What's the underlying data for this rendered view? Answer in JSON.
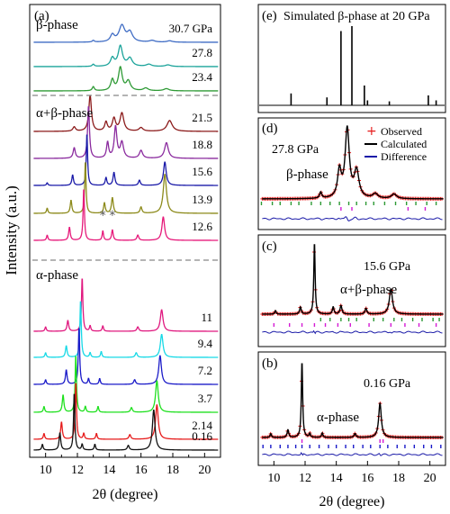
{
  "chart_data": [
    {
      "id": "a",
      "type": "line",
      "panel_label": "(a)",
      "xlabel": "2θ (degree)",
      "ylabel": "Intensity (a.u.)",
      "xlim": [
        9,
        21
      ],
      "x_ticks": [
        10,
        12,
        14,
        16,
        18,
        20
      ],
      "phase_labels": [
        "β-phase",
        "α+β-phase",
        "α-phase"
      ],
      "series": [
        {
          "name": "30.7 GPa",
          "color": "#3f6cc4",
          "peaks": [
            [
              13.0,
              0.06,
              0.08
            ],
            [
              14.2,
              0.25,
              0.15
            ],
            [
              14.8,
              0.6,
              0.22
            ],
            [
              15.3,
              0.35,
              0.2
            ],
            [
              16.7,
              0.06,
              0.2
            ],
            [
              17.8,
              0.05,
              0.2
            ]
          ]
        },
        {
          "name": "27.8",
          "color": "#1aa39a",
          "peaks": [
            [
              13.0,
              0.08,
              0.08
            ],
            [
              14.2,
              0.3,
              0.14
            ],
            [
              14.7,
              0.75,
              0.16
            ],
            [
              15.3,
              0.3,
              0.18
            ],
            [
              16.5,
              0.08,
              0.2
            ],
            [
              17.7,
              0.06,
              0.2
            ]
          ]
        },
        {
          "name": "23.4",
          "color": "#2e9a35",
          "peaks": [
            [
              13.0,
              0.15,
              0.08
            ],
            [
              14.2,
              0.4,
              0.12
            ],
            [
              14.7,
              0.85,
              0.14
            ],
            [
              15.2,
              0.35,
              0.16
            ],
            [
              16.3,
              0.1,
              0.18
            ],
            [
              17.6,
              0.08,
              0.2
            ]
          ]
        },
        {
          "name": "21.5",
          "color": "#8b1a1a",
          "peaks": [
            [
              11.8,
              0.12,
              0.1
            ],
            [
              12.8,
              1.0,
              0.1
            ],
            [
              13.8,
              0.25,
              0.1
            ],
            [
              14.3,
              0.35,
              0.12
            ],
            [
              14.8,
              0.5,
              0.14
            ],
            [
              16.0,
              0.1,
              0.15
            ],
            [
              17.8,
              0.3,
              0.2
            ]
          ]
        },
        {
          "name": "18.8",
          "color": "#8a2a9e",
          "peaks": [
            [
              11.8,
              0.2,
              0.08
            ],
            [
              12.7,
              1.0,
              0.07
            ],
            [
              13.9,
              0.3,
              0.08
            ],
            [
              14.4,
              0.6,
              0.1
            ],
            [
              14.8,
              0.3,
              0.12
            ],
            [
              16.0,
              0.15,
              0.12
            ],
            [
              17.6,
              0.3,
              0.14
            ]
          ]
        },
        {
          "name": "15.6",
          "color": "#1a1aa8",
          "peaks": [
            [
              10.1,
              0.05,
              0.05
            ],
            [
              11.7,
              0.2,
              0.06
            ],
            [
              12.6,
              1.0,
              0.05
            ],
            [
              13.8,
              0.15,
              0.06
            ],
            [
              14.3,
              0.25,
              0.07
            ],
            [
              15.9,
              0.1,
              0.07
            ],
            [
              17.5,
              0.45,
              0.1
            ]
          ]
        },
        {
          "name": "13.9",
          "color": "#8c8a1a",
          "peaks": [
            [
              10.1,
              0.1,
              0.05
            ],
            [
              11.6,
              0.25,
              0.06
            ],
            [
              12.5,
              1.0,
              0.05
            ],
            [
              13.7,
              0.2,
              0.06
            ],
            [
              14.2,
              0.3,
              0.07
            ],
            [
              16.0,
              0.12,
              0.07
            ],
            [
              17.5,
              0.75,
              0.12
            ]
          ]
        },
        {
          "name": "12.6",
          "color": "#e6197a",
          "peaks": [
            [
              10.1,
              0.1,
              0.05
            ],
            [
              11.5,
              0.25,
              0.06
            ],
            [
              12.4,
              1.0,
              0.05
            ],
            [
              13.6,
              0.18,
              0.05
            ],
            [
              14.2,
              0.2,
              0.06
            ],
            [
              15.8,
              0.1,
              0.07
            ],
            [
              17.4,
              0.45,
              0.1
            ]
          ]
        },
        {
          "name": "11",
          "color": "#e0187f",
          "peaks": [
            [
              10.0,
              0.08,
              0.05
            ],
            [
              11.4,
              0.2,
              0.06
            ],
            [
              12.3,
              1.0,
              0.05
            ],
            [
              12.8,
              0.1,
              0.05
            ],
            [
              13.6,
              0.1,
              0.05
            ],
            [
              15.8,
              0.08,
              0.07
            ],
            [
              17.3,
              0.4,
              0.1
            ]
          ]
        },
        {
          "name": "9.4",
          "color": "#17d9e6",
          "peaks": [
            [
              10.0,
              0.08,
              0.05
            ],
            [
              11.3,
              0.2,
              0.06
            ],
            [
              12.2,
              1.0,
              0.05
            ],
            [
              12.8,
              0.08,
              0.05
            ],
            [
              13.5,
              0.1,
              0.05
            ],
            [
              15.7,
              0.08,
              0.07
            ],
            [
              17.3,
              0.4,
              0.1
            ]
          ]
        },
        {
          "name": "7.2",
          "color": "#1a1ac8",
          "peaks": [
            [
              10.0,
              0.08,
              0.05
            ],
            [
              11.3,
              0.25,
              0.06
            ],
            [
              12.1,
              1.0,
              0.05
            ],
            [
              12.7,
              0.1,
              0.05
            ],
            [
              13.4,
              0.1,
              0.05
            ],
            [
              15.6,
              0.08,
              0.07
            ],
            [
              17.2,
              0.5,
              0.1
            ]
          ]
        },
        {
          "name": "3.7",
          "color": "#1ee01e",
          "peaks": [
            [
              9.9,
              0.1,
              0.05
            ],
            [
              11.1,
              0.3,
              0.06
            ],
            [
              11.9,
              1.0,
              0.05
            ],
            [
              12.5,
              0.1,
              0.05
            ],
            [
              13.3,
              0.1,
              0.05
            ],
            [
              15.4,
              0.08,
              0.07
            ],
            [
              17.0,
              0.55,
              0.1
            ]
          ]
        },
        {
          "name": "2.14",
          "color": "#e61a1a",
          "peaks": [
            [
              9.9,
              0.1,
              0.05
            ],
            [
              11.0,
              0.3,
              0.06
            ],
            [
              11.9,
              1.0,
              0.05
            ],
            [
              12.4,
              0.1,
              0.05
            ],
            [
              13.2,
              0.1,
              0.05
            ],
            [
              15.3,
              0.08,
              0.07
            ],
            [
              17.0,
              0.6,
              0.1
            ]
          ]
        },
        {
          "name": "0.16",
          "color": "#111111",
          "peaks": [
            [
              9.8,
              0.1,
              0.05
            ],
            [
              10.9,
              0.3,
              0.06
            ],
            [
              11.8,
              1.0,
              0.05
            ],
            [
              12.3,
              0.1,
              0.05
            ],
            [
              13.1,
              0.1,
              0.05
            ],
            [
              15.2,
              0.08,
              0.07
            ],
            [
              16.8,
              0.7,
              0.1
            ]
          ]
        }
      ],
      "markers": [
        {
          "text": "*",
          "x": 13.6,
          "series": "12.6"
        },
        {
          "text": "*",
          "x": 14.2,
          "series": "12.6"
        }
      ]
    },
    {
      "id": "e",
      "type": "bar",
      "panel_label": "(e)",
      "title": "Simulated β-phase at 20 GPa",
      "xlim": [
        9,
        21
      ],
      "sticks": [
        [
          11.1,
          0.12
        ],
        [
          13.4,
          0.08
        ],
        [
          14.3,
          0.75
        ],
        [
          15.0,
          0.8
        ],
        [
          15.8,
          0.2
        ],
        [
          16.0,
          0.05
        ],
        [
          17.4,
          0.04
        ],
        [
          19.9,
          0.1
        ],
        [
          20.4,
          0.05
        ]
      ],
      "color": "#000000"
    },
    {
      "id": "d",
      "type": "scatter",
      "panel_label": "(d)",
      "annotations": [
        "27.8 GPa",
        "β-phase"
      ],
      "legend": [
        "Observed",
        "Calculated",
        "Difference"
      ],
      "legend_colors": [
        "#e61a1a",
        "#000000",
        "#1a1aa8"
      ],
      "xlim": [
        9,
        21
      ],
      "peaks": [
        [
          13.0,
          0.08,
          0.08
        ],
        [
          14.2,
          0.35,
          0.14
        ],
        [
          14.7,
          0.9,
          0.16
        ],
        [
          15.3,
          0.35,
          0.18
        ],
        [
          16.5,
          0.06,
          0.2
        ],
        [
          17.7,
          0.06,
          0.2
        ]
      ],
      "ticks_green": [
        9.2,
        9.9,
        10.4,
        11.1,
        11.6,
        12.4,
        13.0,
        13.6,
        14.2,
        14.8,
        15.3,
        15.9,
        16.4,
        17.1,
        17.8,
        18.5,
        19.1,
        19.8,
        20.4
      ],
      "ticks_magenta": [
        14.3,
        15.0,
        18.6,
        19.7
      ]
    },
    {
      "id": "c",
      "type": "scatter",
      "panel_label": "(c)",
      "annotations": [
        "15.6 GPa",
        "α+β-phase"
      ],
      "xlim": [
        9,
        21
      ],
      "peaks": [
        [
          10.1,
          0.05,
          0.05
        ],
        [
          11.7,
          0.1,
          0.06
        ],
        [
          12.6,
          1.0,
          0.05
        ],
        [
          13.8,
          0.1,
          0.06
        ],
        [
          14.3,
          0.12,
          0.07
        ],
        [
          15.9,
          0.08,
          0.07
        ],
        [
          17.5,
          0.35,
          0.12
        ]
      ],
      "ticks_magenta": [
        10.0,
        11.0,
        11.8,
        12.6,
        13.3,
        14.1,
        14.9,
        16.1,
        17.5,
        18.4,
        19.3,
        20.4
      ],
      "ticks_green": [
        13.0,
        13.6,
        14.3,
        14.8,
        15.3,
        16.4,
        17.0,
        17.7,
        18.2,
        18.9,
        19.5,
        20.2,
        20.6
      ]
    },
    {
      "id": "b",
      "type": "scatter",
      "panel_label": "(b)",
      "annotations": [
        "0.16 GPa",
        "α-phase"
      ],
      "xlabel": "2θ (degree)",
      "xlim": [
        9,
        21
      ],
      "x_ticks": [
        10,
        12,
        14,
        16,
        18,
        20
      ],
      "peaks": [
        [
          9.8,
          0.05,
          0.05
        ],
        [
          10.9,
          0.1,
          0.06
        ],
        [
          11.8,
          1.0,
          0.05
        ],
        [
          12.3,
          0.05,
          0.05
        ],
        [
          13.1,
          0.06,
          0.05
        ],
        [
          15.2,
          0.05,
          0.07
        ],
        [
          16.8,
          0.45,
          0.1
        ]
      ],
      "ticks_blue": [
        9.3,
        9.8,
        10.4,
        10.9,
        11.4,
        11.8,
        12.3,
        12.9,
        13.5,
        14.0,
        14.6,
        15.1,
        15.7,
        16.2,
        16.8,
        17.3,
        17.9,
        18.4,
        19.0,
        19.6,
        20.1,
        20.7
      ],
      "ticks_magenta": [
        11.8,
        16.8,
        17.0
      ]
    }
  ]
}
